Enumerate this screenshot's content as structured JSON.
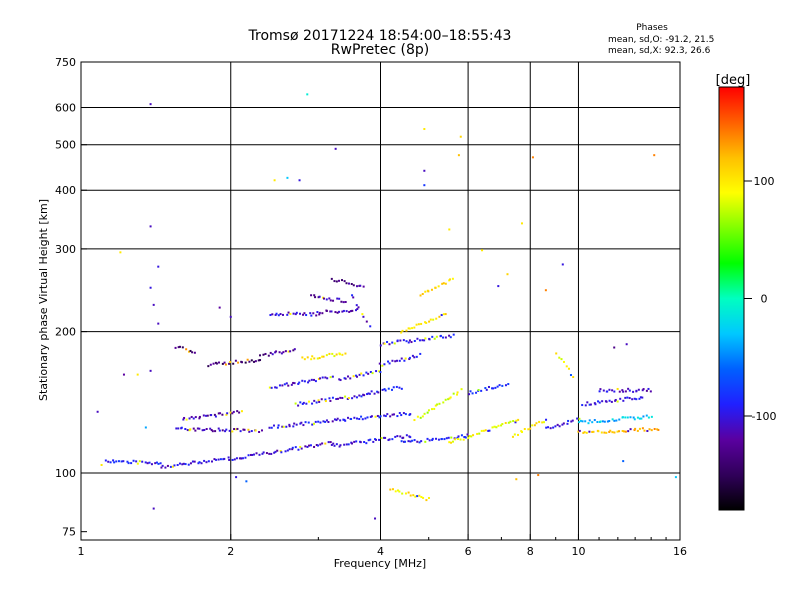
{
  "chart_data": {
    "type": "scatter",
    "title": "Tromsø 20171224 18:54:00–18:55:43",
    "subtitle": "RwPretec (8p)",
    "stats": {
      "heading": "Phases",
      "line1": "mean, sd,O: -91.2, 21.5",
      "line2": "mean, sd,X:  92.3, 26.6"
    },
    "xlabel": "Frequency [MHz]",
    "ylabel": "Stationary phase Virtual Height [km]",
    "x_scale": "log",
    "y_scale": "log",
    "xlim": [
      1,
      16
    ],
    "ylim": [
      72,
      750
    ],
    "x_ticks": [
      {
        "value": 1,
        "label": "1"
      },
      {
        "value": 2,
        "label": "2"
      },
      {
        "value": 4,
        "label": "4"
      },
      {
        "value": 6,
        "label": "6"
      },
      {
        "value": 8,
        "label": "8"
      },
      {
        "value": 10,
        "label": "10"
      },
      {
        "value": 16,
        "label": "16"
      }
    ],
    "x_gridlines": [
      2,
      4,
      6,
      8,
      10
    ],
    "y_ticks": [
      {
        "value": 75,
        "label": "75"
      },
      {
        "value": 100,
        "label": "100"
      },
      {
        "value": 200,
        "label": "200"
      },
      {
        "value": 300,
        "label": "300"
      },
      {
        "value": 400,
        "label": "400"
      },
      {
        "value": 500,
        "label": "500"
      },
      {
        "value": 600,
        "label": "600"
      },
      {
        "value": 750,
        "label": "750"
      }
    ],
    "y_gridlines": [
      100,
      200,
      300,
      400,
      500,
      600
    ],
    "colorbar": {
      "label": "[deg]",
      "range": [
        -180,
        180
      ],
      "ticks": [
        {
          "value": 100,
          "label": "100"
        },
        {
          "value": 0,
          "label": "0"
        },
        {
          "value": -100,
          "label": "-100"
        }
      ],
      "colors": [
        "#000000",
        "#30005a",
        "#5a00a0",
        "#2020ff",
        "#0060ff",
        "#00c8ff",
        "#00ffc0",
        "#00ff00",
        "#80ff00",
        "#ffff00",
        "#ffc000",
        "#ff6000",
        "#ff0000"
      ]
    },
    "traces": [
      {
        "x": [
          1.12,
          1.45
        ],
        "y": [
          106,
          105
        ],
        "phase": -95
      },
      {
        "x": [
          1.45,
          2.1
        ],
        "y": [
          103,
          108
        ],
        "phase": -100
      },
      {
        "x": [
          2.1,
          3.2
        ],
        "y": [
          108,
          116
        ],
        "phase": -105
      },
      {
        "x": [
          3.2,
          4.6
        ],
        "y": [
          114,
          120
        ],
        "phase": -100
      },
      {
        "x": [
          4.4,
          6.0
        ],
        "y": [
          116,
          120
        ],
        "phase": -95
      },
      {
        "x": [
          1.55,
          2.3
        ],
        "y": [
          124,
          123
        ],
        "phase": -110
      },
      {
        "x": [
          2.4,
          3.4
        ],
        "y": [
          125,
          130
        ],
        "phase": -100
      },
      {
        "x": [
          3.4,
          4.6
        ],
        "y": [
          130,
          134
        ],
        "phase": -95
      },
      {
        "x": [
          1.6,
          2.1
        ],
        "y": [
          130,
          135
        ],
        "phase": -115
      },
      {
        "x": [
          2.7,
          3.8
        ],
        "y": [
          140,
          147
        ],
        "phase": -100
      },
      {
        "x": [
          3.8,
          4.4
        ],
        "y": [
          148,
          152
        ],
        "phase": -95
      },
      {
        "x": [
          2.4,
          3.2
        ],
        "y": [
          152,
          160
        ],
        "phase": -105
      },
      {
        "x": [
          3.3,
          4.0
        ],
        "y": [
          158,
          165
        ],
        "phase": -100
      },
      {
        "x": [
          4.0,
          4.8
        ],
        "y": [
          170,
          178
        ],
        "phase": -100
      },
      {
        "x": [
          1.55,
          1.7
        ],
        "y": [
          186,
          180
        ],
        "phase": -135
      },
      {
        "x": [
          1.8,
          2.3
        ],
        "y": [
          170,
          174
        ],
        "phase": -140
      },
      {
        "x": [
          2.3,
          2.7
        ],
        "y": [
          178,
          183
        ],
        "phase": -125
      },
      {
        "x": [
          2.4,
          3.0
        ],
        "y": [
          218,
          218
        ],
        "phase": -105
      },
      {
        "x": [
          3.0,
          3.6
        ],
        "y": [
          220,
          222
        ],
        "phase": -110
      },
      {
        "x": [
          2.9,
          3.4
        ],
        "y": [
          238,
          232
        ],
        "phase": -120
      },
      {
        "x": [
          3.2,
          3.7
        ],
        "y": [
          258,
          250
        ],
        "phase": -125
      },
      {
        "x": [
          3.5,
          3.8
        ],
        "y": [
          240,
          205
        ],
        "phase": -105
      },
      {
        "x": [
          2.8,
          3.4
        ],
        "y": [
          175,
          180
        ],
        "phase": 100
      },
      {
        "x": [
          4.0,
          5.6
        ],
        "y": [
          188,
          196
        ],
        "phase": -100
      },
      {
        "x": [
          4.4,
          5.4
        ],
        "y": [
          200,
          218
        ],
        "phase": 100
      },
      {
        "x": [
          4.8,
          5.6
        ],
        "y": [
          240,
          258
        ],
        "phase": 100
      },
      {
        "x": [
          4.7,
          5.8
        ],
        "y": [
          130,
          150
        ],
        "phase": 80
      },
      {
        "x": [
          5.5,
          7.6
        ],
        "y": [
          116,
          130
        ],
        "phase": 90
      },
      {
        "x": [
          6.0,
          7.2
        ],
        "y": [
          148,
          155
        ],
        "phase": -90
      },
      {
        "x": [
          8.6,
          10.0
        ],
        "y": [
          124,
          130
        ],
        "phase": -100
      },
      {
        "x": [
          10.0,
          14.5
        ],
        "y": [
          122,
          124
        ],
        "phase": 120
      },
      {
        "x": [
          10.0,
          14.0
        ],
        "y": [
          128,
          132
        ],
        "phase": -30
      },
      {
        "x": [
          10.2,
          13.5
        ],
        "y": [
          140,
          145
        ],
        "phase": -95
      },
      {
        "x": [
          11.0,
          14.0
        ],
        "y": [
          150,
          150
        ],
        "phase": -110
      },
      {
        "x": [
          9.0,
          9.8
        ],
        "y": [
          180,
          160
        ],
        "phase": 90
      },
      {
        "x": [
          7.4,
          8.6
        ],
        "y": [
          120,
          130
        ],
        "phase": 100
      },
      {
        "x": [
          4.2,
          5.0
        ],
        "y": [
          92,
          88
        ],
        "phase": 100
      }
    ],
    "points": [
      {
        "x": 1.38,
        "y": 610,
        "phase": -110
      },
      {
        "x": 2.85,
        "y": 640,
        "phase": -10
      },
      {
        "x": 3.25,
        "y": 490,
        "phase": -110
      },
      {
        "x": 2.45,
        "y": 420,
        "phase": 100
      },
      {
        "x": 2.6,
        "y": 425,
        "phase": -30
      },
      {
        "x": 2.75,
        "y": 420,
        "phase": -100
      },
      {
        "x": 4.9,
        "y": 540,
        "phase": 100
      },
      {
        "x": 5.8,
        "y": 520,
        "phase": 110
      },
      {
        "x": 5.75,
        "y": 475,
        "phase": 120
      },
      {
        "x": 4.9,
        "y": 440,
        "phase": -110
      },
      {
        "x": 4.9,
        "y": 410,
        "phase": -80
      },
      {
        "x": 8.1,
        "y": 470,
        "phase": 140
      },
      {
        "x": 14.2,
        "y": 475,
        "phase": 140
      },
      {
        "x": 1.38,
        "y": 335,
        "phase": -110
      },
      {
        "x": 5.5,
        "y": 330,
        "phase": 100
      },
      {
        "x": 1.2,
        "y": 295,
        "phase": 100
      },
      {
        "x": 1.43,
        "y": 275,
        "phase": -100
      },
      {
        "x": 9.3,
        "y": 278,
        "phase": -100
      },
      {
        "x": 1.38,
        "y": 248,
        "phase": -100
      },
      {
        "x": 1.4,
        "y": 228,
        "phase": -110
      },
      {
        "x": 1.43,
        "y": 208,
        "phase": -110
      },
      {
        "x": 8.6,
        "y": 245,
        "phase": 140
      },
      {
        "x": 1.22,
        "y": 162,
        "phase": -120
      },
      {
        "x": 1.3,
        "y": 162,
        "phase": 100
      },
      {
        "x": 1.38,
        "y": 165,
        "phase": -110
      },
      {
        "x": 1.08,
        "y": 135,
        "phase": -110
      },
      {
        "x": 1.35,
        "y": 125,
        "phase": -40
      },
      {
        "x": 1.1,
        "y": 104,
        "phase": 100
      },
      {
        "x": 1.4,
        "y": 84,
        "phase": -110
      },
      {
        "x": 2.05,
        "y": 98,
        "phase": -100
      },
      {
        "x": 2.15,
        "y": 96,
        "phase": -60
      },
      {
        "x": 3.9,
        "y": 80,
        "phase": -110
      },
      {
        "x": 7.5,
        "y": 97,
        "phase": 120
      },
      {
        "x": 8.3,
        "y": 99,
        "phase": 140
      },
      {
        "x": 12.3,
        "y": 106,
        "phase": -60
      },
      {
        "x": 15.7,
        "y": 98,
        "phase": -30
      },
      {
        "x": 12.5,
        "y": 188,
        "phase": -110
      },
      {
        "x": 11.8,
        "y": 185,
        "phase": -130
      },
      {
        "x": 6.4,
        "y": 298,
        "phase": 100
      },
      {
        "x": 7.2,
        "y": 265,
        "phase": 110
      },
      {
        "x": 6.9,
        "y": 250,
        "phase": -100
      },
      {
        "x": 2.0,
        "y": 215,
        "phase": -110
      },
      {
        "x": 1.9,
        "y": 225,
        "phase": -120
      },
      {
        "x": 7.7,
        "y": 340,
        "phase": 100
      }
    ]
  }
}
